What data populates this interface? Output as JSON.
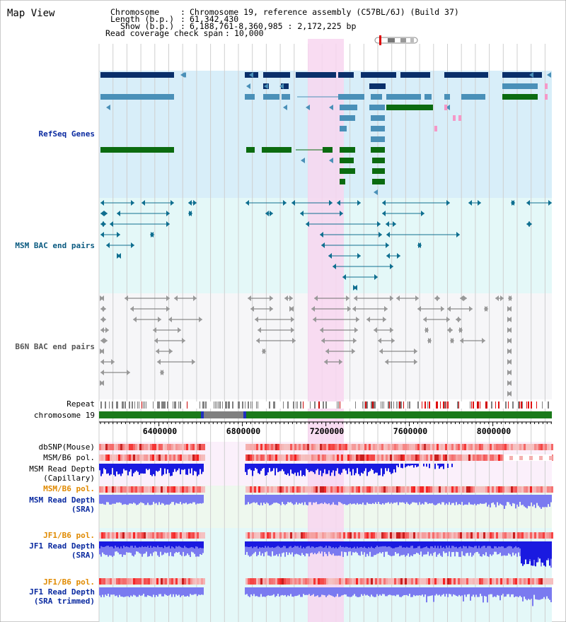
{
  "view_title": "Map View",
  "info": {
    "chromosome_label": "Chromosome",
    "chromosome_value": "Chromosome 19, reference assembly (C57BL/6J) (Build 37)",
    "length_label": "Length (b.p.)",
    "length_value": "61,342,430",
    "show_label": "Show (b.p.)",
    "show_value": "6,188,761-8,360,985 : 2,172,225 bp",
    "coverage_label": "Read coverage check span",
    "coverage_value": "10,000"
  },
  "tracks": {
    "refseq": "RefSeq Genes",
    "msm_bac": "MSM BAC end pairs",
    "b6n_bac": "B6N BAC end pairs",
    "repeat": "Repeat",
    "chromosome": "chromosome 19",
    "dbsnp": "dbSNP(Mouse)",
    "msm_b6_pol_1": "MSM/B6 pol.",
    "msm_depth_cap_1": "MSM Read Depth",
    "msm_depth_cap_2": "(Capillary)",
    "msm_b6_pol_2": "MSM/B6 pol.",
    "msm_depth_sra_1": "MSM Read Depth",
    "msm_depth_sra_2": "(SRA)",
    "jf1_b6_pol_1": "JF1/B6 pol.",
    "jf1_depth_sra_1": "JF1 Read Depth",
    "jf1_depth_sra_2": "(SRA)",
    "jf1_b6_pol_2": "JF1/B6 pol.",
    "jf1_depth_trim_1": "JF1 Read Depth",
    "jf1_depth_trim_2": "(SRA trimmed)"
  },
  "axis": {
    "ticks": [
      "6400000",
      "6800000",
      "7200000",
      "7600000",
      "8000000"
    ]
  },
  "colors": {
    "refseq_bg": "#d8eef9",
    "bac_bg": "#e4f8f8",
    "b6n_bg": "#f6f6f8",
    "highlight": "#f8d6f0",
    "gene_navy": "#0a2f6a",
    "gene_steel": "#4a90b8",
    "gene_green": "#0b6b10",
    "gene_pink": "#f598c8",
    "bac_teal": "#0f6f90",
    "bac_grey": "#707070",
    "chrom_green": "#1a7a1a",
    "depth_dark": "#1a1ae0",
    "depth_light": "#7a7af0",
    "label_navy": "#0a2aa0",
    "label_teal": "#0a5a80",
    "label_orange": "#e08a00"
  }
}
